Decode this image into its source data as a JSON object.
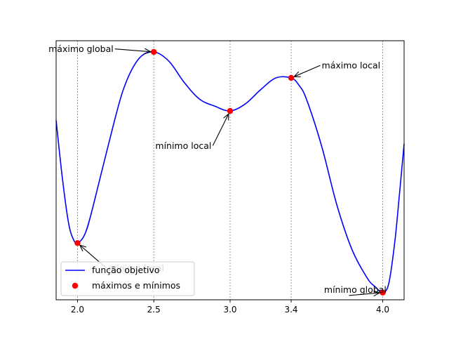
{
  "chart_data": {
    "type": "line",
    "title": "",
    "xlabel": "",
    "ylabel": "",
    "x_range": [
      1.86,
      4.14
    ],
    "y_range": [
      0,
      1
    ],
    "x_ticks": [
      2.0,
      2.5,
      3.0,
      3.4,
      4.0
    ],
    "x_tick_labels": [
      "2.0",
      "2.5",
      "3.0",
      "3.4",
      "4.0"
    ],
    "y_ticks_visible": false,
    "vertical_guides": [
      2.0,
      2.5,
      3.0,
      3.4,
      4.0
    ],
    "series": [
      {
        "name": "função objetivo",
        "kind": "line",
        "color": "#0000ff",
        "x": [
          1.86,
          1.9,
          1.94,
          1.97,
          2.0,
          2.05,
          2.1,
          2.2,
          2.3,
          2.4,
          2.5,
          2.6,
          2.7,
          2.8,
          2.9,
          3.0,
          3.1,
          3.2,
          3.3,
          3.4,
          3.45,
          3.5,
          3.6,
          3.7,
          3.8,
          3.9,
          3.95,
          4.0,
          4.04,
          4.08,
          4.11,
          4.14
        ],
        "y": [
          0.71,
          0.47,
          0.28,
          0.21,
          0.19,
          0.23,
          0.34,
          0.6,
          0.84,
          0.97,
          1.0,
          0.96,
          0.87,
          0.8,
          0.77,
          0.75,
          0.78,
          0.84,
          0.89,
          0.89,
          0.86,
          0.8,
          0.6,
          0.35,
          0.16,
          0.04,
          0.005,
          -0.02,
          0.02,
          0.2,
          0.4,
          0.61
        ]
      },
      {
        "name": "máximos e mínimos",
        "kind": "scatter",
        "color": "#ff0000",
        "x": [
          2.0,
          2.5,
          3.0,
          3.4,
          4.0
        ],
        "y": [
          0.19,
          1.0,
          0.75,
          0.89,
          -0.02
        ]
      }
    ],
    "annotations": [
      {
        "text": "máximo global",
        "point": [
          2.5,
          1.0
        ],
        "text_pos": [
          1.81,
          1.01
        ],
        "anchor": "start"
      },
      {
        "text": "mínimo local",
        "point": [
          2.0,
          0.19
        ],
        "text_pos": [
          2.2,
          0.08
        ],
        "anchor": "start"
      },
      {
        "text": "mínimo local",
        "point": [
          3.0,
          0.75
        ],
        "text_pos": [
          2.51,
          0.6
        ],
        "anchor": "start"
      },
      {
        "text": "máximo local",
        "point": [
          3.4,
          0.89
        ],
        "text_pos": [
          3.6,
          0.94
        ],
        "anchor": "start"
      },
      {
        "text": "mínimo global",
        "point": [
          4.0,
          -0.02
        ],
        "text_pos": [
          3.82,
          -0.01
        ],
        "anchor": "middle"
      }
    ],
    "legend": {
      "placement": "lower-left",
      "entries": [
        "função objetivo",
        "máximos e mínimos"
      ]
    },
    "grid": false
  }
}
